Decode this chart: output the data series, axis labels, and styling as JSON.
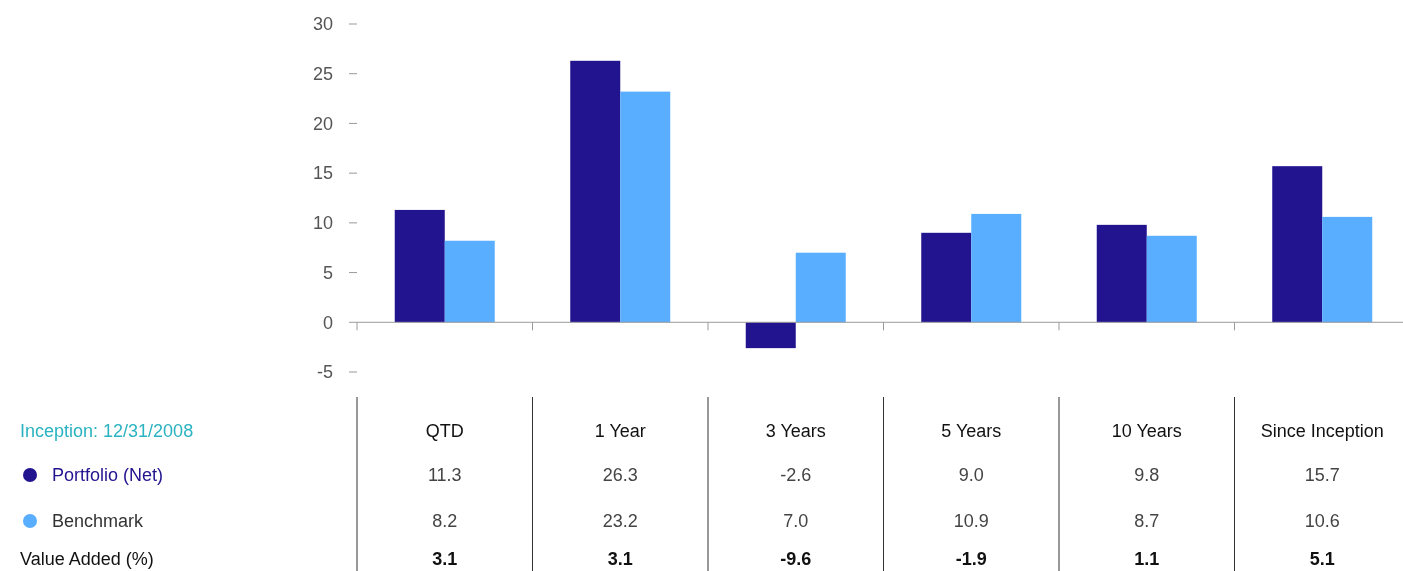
{
  "chart_data": {
    "type": "bar",
    "categories": [
      "QTD",
      "1 Year",
      "3 Years",
      "5 Years",
      "10 Years",
      "Since Inception"
    ],
    "series": [
      {
        "name": "Portfolio (Net)",
        "color": "#22138f",
        "values": [
          11.3,
          26.3,
          -2.6,
          9.0,
          9.8,
          15.7
        ],
        "value_labels": [
          "11.3",
          "26.3",
          "-2.6",
          "9.0",
          "9.8",
          "15.7"
        ]
      },
      {
        "name": "Benchmark",
        "color": "#5aaeff",
        "values": [
          8.2,
          23.2,
          7.0,
          10.9,
          8.7,
          10.6
        ],
        "value_labels": [
          "8.2",
          "23.2",
          "7.0",
          "10.9",
          "8.7",
          "10.6"
        ]
      }
    ],
    "ylim": [
      -5,
      30
    ],
    "yticks": [
      -5,
      0,
      5,
      10,
      15,
      20,
      25,
      30
    ],
    "legend": "bottom left",
    "annotations": [
      "Inception: 12/31/2008",
      "Value Added (%)",
      "3.1",
      "3.1",
      "-9.6",
      "-1.9",
      "1.1",
      "5.1"
    ]
  }
}
